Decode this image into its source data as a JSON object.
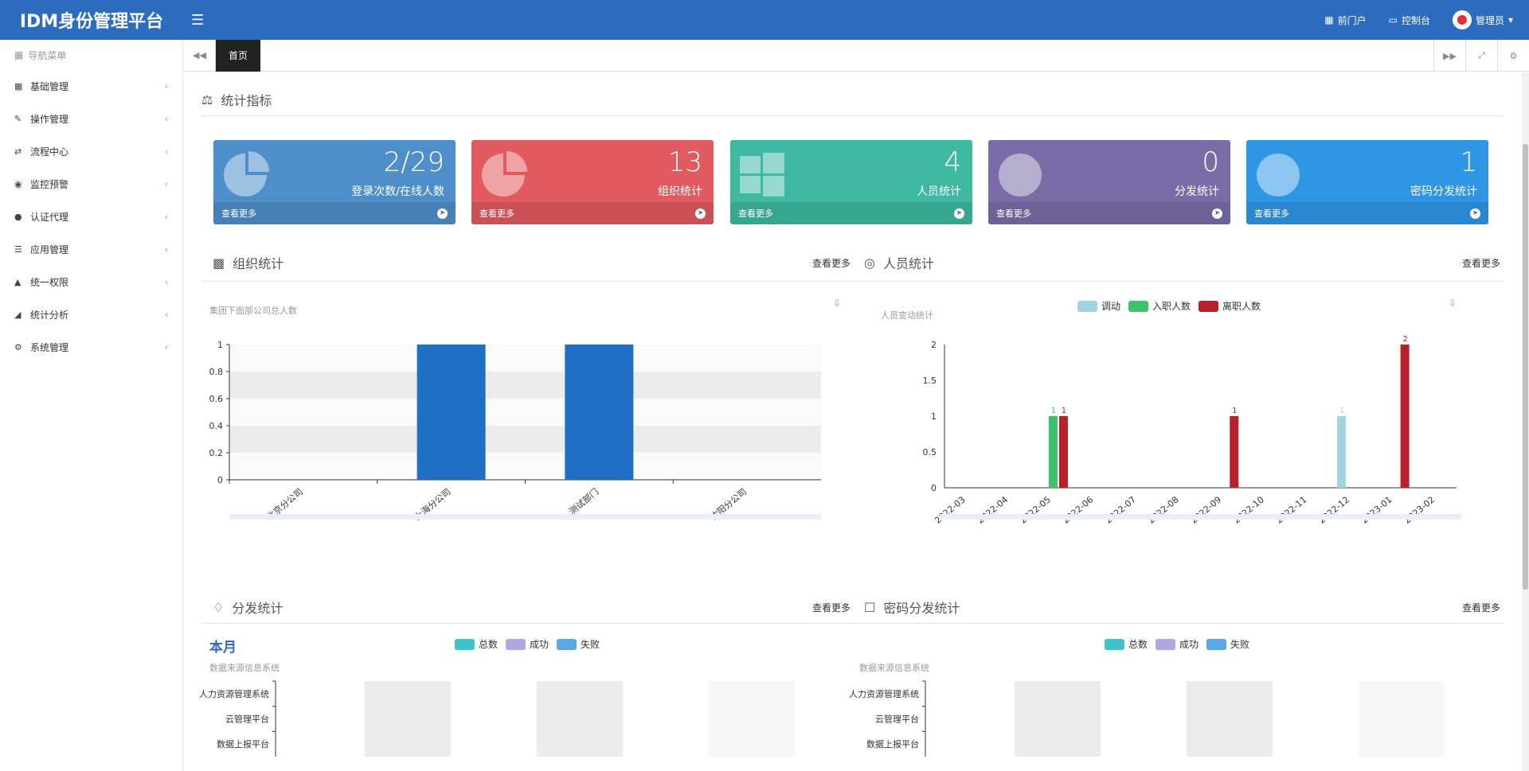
{
  "app": {
    "title": "IDM身份管理平台"
  },
  "topbar": {
    "items": [
      {
        "label": "前门户",
        "icon": "id-card-icon"
      },
      {
        "label": "控制台",
        "icon": "monitor-icon"
      },
      {
        "label": "管理员",
        "icon": "avatar-icon"
      }
    ]
  },
  "sidebar": {
    "header": "导航菜单",
    "items": [
      {
        "label": "基础管理",
        "icon": "id-card-icon"
      },
      {
        "label": "操作管理",
        "icon": "edit-icon"
      },
      {
        "label": "流程中心",
        "icon": "shuffle-icon"
      },
      {
        "label": "监控预警",
        "icon": "eye-icon"
      },
      {
        "label": "认证代理",
        "icon": "users-icon"
      },
      {
        "label": "应用管理",
        "icon": "list-icon"
      },
      {
        "label": "统一权限",
        "icon": "sitemap-icon"
      },
      {
        "label": "统计分析",
        "icon": "area-chart-icon"
      },
      {
        "label": "系统管理",
        "icon": "cogs-icon"
      }
    ]
  },
  "tabs": {
    "active": "首页"
  },
  "main": {
    "stats_title": "统计指标",
    "cards": [
      {
        "value": "2/29",
        "label": "登录次数/在线人数",
        "more": "查看更多",
        "color": "#4e8fca"
      },
      {
        "value": "13",
        "label": "组织统计",
        "more": "查看更多",
        "color": "#e05a5f"
      },
      {
        "value": "4",
        "label": "人员统计",
        "more": "查看更多",
        "color": "#3fb8a1"
      },
      {
        "value": "0",
        "label": "分发统计",
        "more": "查看更多",
        "color": "#7b6ca8"
      },
      {
        "value": "1",
        "label": "密码分发统计",
        "more": "查看更多",
        "color": "#2f96e6"
      }
    ],
    "org_title": "组织统计",
    "org_more": "查看更多",
    "person_title": "人员统计",
    "person_more": "查看更多",
    "dist_title": "分发统计",
    "dist_more": "查看更多",
    "pwd_title": "密码分发统计",
    "pwd_more": "查看更多",
    "month_label": "本月"
  },
  "chart_data": [
    {
      "type": "bar",
      "title": "集团下面部公司总人数",
      "categories": [
        "北京分公司",
        "上海分公司",
        "测试部门",
        "沈阳分公司"
      ],
      "values": [
        0,
        1,
        1,
        0
      ],
      "ylim": [
        0,
        1
      ],
      "yticks": [
        "0",
        "0.2",
        "0.4",
        "0.6",
        "0.8",
        "1"
      ],
      "grid": true,
      "color": "#1f6fc5"
    },
    {
      "type": "bar",
      "title": "人员变动统计",
      "categories": [
        "2022-03",
        "2022-04",
        "2022-05",
        "2022-06",
        "2022-07",
        "2022-08",
        "2022-09",
        "2022-10",
        "2022-11",
        "2022-12",
        "2023-01",
        "2023-02"
      ],
      "series": [
        {
          "name": "调动",
          "color": "#9fd4e0",
          "values": [
            0,
            0,
            0,
            0,
            0,
            0,
            0,
            0,
            0,
            1,
            0,
            0
          ]
        },
        {
          "name": "入职人数",
          "color": "#3cc26b",
          "values": [
            0,
            0,
            1,
            0,
            0,
            0,
            0,
            0,
            0,
            0,
            0,
            0
          ]
        },
        {
          "name": "离职人数",
          "color": "#b8202a",
          "values": [
            0,
            0,
            1,
            0,
            0,
            0,
            1,
            0,
            0,
            0,
            2,
            0
          ]
        }
      ],
      "labels": [
        "1",
        "1",
        "1",
        "1",
        "2"
      ],
      "ylim": [
        0,
        2
      ],
      "yticks": [
        "0",
        "0.5",
        "1",
        "1.5",
        "2"
      ],
      "legend": "top"
    },
    {
      "type": "bar",
      "title": "数据来源信息系统",
      "categories": [
        "人力资源管理系统",
        "云管理平台",
        "数据上报平台"
      ],
      "series": [
        {
          "name": "总数",
          "color": "#3cc4c8"
        },
        {
          "name": "成功",
          "color": "#b2a6e0"
        },
        {
          "name": "失败",
          "color": "#5aa8e6"
        }
      ],
      "legend": "top"
    },
    {
      "type": "bar",
      "title": "数据来源信息系统",
      "categories": [
        "人力资源管理系统",
        "云管理平台",
        "数据上报平台"
      ],
      "series": [
        {
          "name": "总数",
          "color": "#3cc4c8"
        },
        {
          "name": "成功",
          "color": "#b2a6e0"
        },
        {
          "name": "失败",
          "color": "#5aa8e6"
        }
      ],
      "legend": "top"
    }
  ]
}
